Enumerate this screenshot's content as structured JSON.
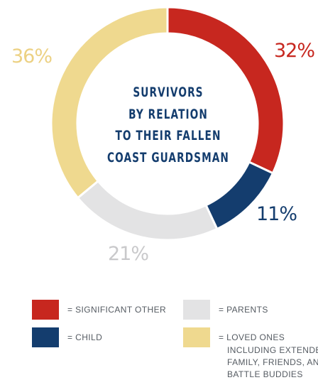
{
  "chart_data": {
    "type": "pie",
    "variant": "donut",
    "title_lines": [
      "SURVIVORS",
      "BY RELATION",
      "TO THEIR FALLEN",
      "COAST GUARDSMAN"
    ],
    "slices": [
      {
        "key": "significant_other",
        "value": 32,
        "label": "32%",
        "color": "#c7271f"
      },
      {
        "key": "child",
        "value": 11,
        "label": "11%",
        "color": "#143d6e"
      },
      {
        "key": "parents",
        "value": 21,
        "label": "21%",
        "color": "#e3e3e4"
      },
      {
        "key": "loved_ones",
        "value": 36,
        "label": "36%",
        "color": "#efd98f"
      }
    ],
    "legend": [
      {
        "key": "significant_other",
        "color": "#c7271f",
        "lines": [
          "= SIGNIFICANT OTHER"
        ]
      },
      {
        "key": "parents",
        "color": "#e3e3e4",
        "lines": [
          "= PARENTS"
        ]
      },
      {
        "key": "child",
        "color": "#143d6e",
        "lines": [
          "= CHILD"
        ]
      },
      {
        "key": "loved_ones",
        "color": "#efd98f",
        "lines": [
          "= LOVED ONES",
          "INCLUDING EXTENDE",
          "FAMILY, FRIENDS, AN",
          "BATTLE BUDDIES"
        ]
      }
    ]
  }
}
